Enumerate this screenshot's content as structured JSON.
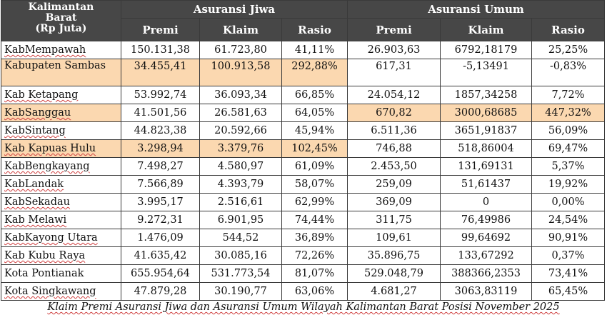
{
  "header": {
    "corner": [
      "Kalimantan",
      "Barat",
      "(Rp Juta)"
    ],
    "group_jiwa": "Asuransi Jiwa",
    "group_umum": "Asuransi Umum",
    "col_premi": "Premi",
    "col_klaim": "Klaim",
    "col_rasio": "Rasio"
  },
  "rows": [
    {
      "name": "KabMempawah",
      "jiwa": [
        "150.131,38",
        "61.723,80",
        "41,11%"
      ],
      "umum": [
        "26.903,63",
        "6792,18179",
        "25,25%"
      ]
    },
    {
      "name": "Kabupaten Sambas",
      "jiwa": [
        "34.455,41",
        "100.913,58",
        "292,88%"
      ],
      "umum": [
        "617,31",
        "-5,13491",
        "-0,83%"
      ]
    },
    {
      "name": "Kab Ketapang",
      "jiwa": [
        "53.992,74",
        "36.093,34",
        "66,85%"
      ],
      "umum": [
        "24.054,12",
        "1857,34258",
        "7,72%"
      ]
    },
    {
      "name": "KabSanggau",
      "jiwa": [
        "41.501,56",
        "26.581,63",
        "64,05%"
      ],
      "umum": [
        "670,82",
        "3000,68685",
        "447,32%"
      ]
    },
    {
      "name": "KabSintang",
      "jiwa": [
        "44.823,38",
        "20.592,66",
        "45,94%"
      ],
      "umum": [
        "6.511,36",
        "3651,91837",
        "56,09%"
      ]
    },
    {
      "name": "Kab Kapuas Hulu",
      "jiwa": [
        "3.298,94",
        "3.379,76",
        "102,45%"
      ],
      "umum": [
        "746,88",
        "518,86004",
        "69,47%"
      ]
    },
    {
      "name": "KabBengkayang",
      "jiwa": [
        "7.498,27",
        "4.580,97",
        "61,09%"
      ],
      "umum": [
        "2.453,50",
        "131,69131",
        "5,37%"
      ]
    },
    {
      "name": "KabLandak",
      "jiwa": [
        "7.566,89",
        "4.393,79",
        "58,07%"
      ],
      "umum": [
        "259,09",
        "51,61437",
        "19,92%"
      ]
    },
    {
      "name": "KabSekadau",
      "jiwa": [
        "3.995,17",
        "2.516,61",
        "62,99%"
      ],
      "umum": [
        "369,09",
        "0",
        "0,00%"
      ]
    },
    {
      "name": "Kab Melawi",
      "jiwa": [
        "9.272,31",
        "6.901,95",
        "74,44%"
      ],
      "umum": [
        "311,75",
        "76,49986",
        "24,54%"
      ]
    },
    {
      "name": "KabKayong Utara",
      "jiwa": [
        "1.476,09",
        "544,52",
        "36,89%"
      ],
      "umum": [
        "109,61",
        "99,64692",
        "90,91%"
      ]
    },
    {
      "name": "Kab Kubu Raya",
      "jiwa": [
        "41.635,42",
        "30.085,16",
        "72,26%"
      ],
      "umum": [
        "35.896,75",
        "133,67292",
        "0,37%"
      ]
    },
    {
      "name": "Kota Pontianak",
      "jiwa": [
        "655.954,64",
        "531.773,54",
        "81,07%"
      ],
      "umum": [
        "529.048,79",
        "388366,2353",
        "73,41%"
      ]
    },
    {
      "name": "Kota Singkawang",
      "jiwa": [
        "47.879,28",
        "30.190,77",
        "63,06%"
      ],
      "umum": [
        "4.681,27",
        "3063,83119",
        "65,45%"
      ]
    }
  ],
  "caption": "Klaim Premi Asuransi Jiwa dan Asuransi Umum Wilayah Kalimantan Barat Posisi November 2025",
  "colors": {
    "header_bg": "#474747",
    "highlight": "#fbd8b0"
  }
}
